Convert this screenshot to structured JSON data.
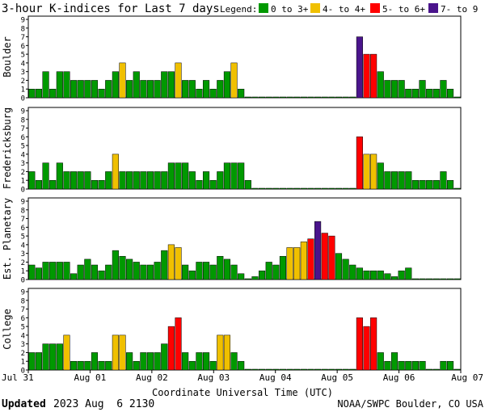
{
  "title": "3-hour K-indices for Last 7 days",
  "legend": {
    "label": "Legend:",
    "items": [
      {
        "text": "0 to 3+",
        "color": "#009900"
      },
      {
        "text": "4- to 4+",
        "color": "#f0c000"
      },
      {
        "text": "5- to 6+",
        "color": "#ff0000"
      },
      {
        "text": "7- to 9",
        "color": "#4a148c"
      }
    ]
  },
  "footer": {
    "updated_label": "Updated",
    "updated_value": "2023 Aug  6 2130",
    "source": "NOAA/SWPC Boulder, CO USA"
  },
  "chart_data": [
    {
      "type": "bar",
      "ylabel": "Boulder",
      "ylim": [
        0,
        9
      ],
      "yticks": [
        "0",
        "1",
        "2",
        "3",
        "4",
        "5",
        "6",
        "7",
        "8",
        "9"
      ],
      "values": [
        1,
        1,
        3,
        1,
        3,
        3,
        2,
        2,
        2,
        2,
        1,
        2,
        3,
        4,
        2,
        3,
        2,
        2,
        2,
        3,
        3,
        4,
        2,
        2,
        1,
        2,
        1,
        2,
        3,
        4,
        1,
        0,
        0,
        0,
        0,
        0,
        0,
        0,
        0,
        0,
        0,
        0,
        0,
        0,
        0,
        0,
        0,
        7,
        5,
        5,
        3,
        2,
        2,
        2,
        1,
        1,
        2,
        1,
        1,
        2,
        1,
        0
      ]
    },
    {
      "type": "bar",
      "ylabel": "Fredericksburg",
      "ylim": [
        0,
        9
      ],
      "yticks": [
        "0",
        "1",
        "2",
        "3",
        "4",
        "5",
        "6",
        "7",
        "8",
        "9"
      ],
      "values": [
        2,
        1,
        3,
        1,
        3,
        2,
        2,
        2,
        2,
        1,
        1,
        2,
        4,
        2,
        2,
        2,
        2,
        2,
        2,
        2,
        3,
        3,
        3,
        2,
        1,
        2,
        1,
        2,
        3,
        3,
        3,
        1,
        0,
        0,
        0,
        0,
        0,
        0,
        0,
        0,
        0,
        0,
        0,
        0,
        0,
        0,
        0,
        6,
        4,
        4,
        3,
        2,
        2,
        2,
        2,
        1,
        1,
        1,
        1,
        2,
        1,
        0
      ]
    },
    {
      "type": "bar",
      "ylabel": "Est. Planetary",
      "ylim": [
        0,
        9
      ],
      "yticks": [
        "0",
        "1",
        "2",
        "3",
        "4",
        "5",
        "6",
        "7",
        "8",
        "9"
      ],
      "values": [
        1.67,
        1.33,
        2,
        2,
        2,
        2,
        0.67,
        1.67,
        2.33,
        1.67,
        1,
        1.67,
        3.33,
        2.67,
        2.33,
        2,
        1.67,
        1.67,
        2,
        3.33,
        4,
        3.67,
        1.67,
        1,
        2,
        2,
        1.67,
        2.67,
        2.33,
        1.67,
        0.67,
        0,
        0.33,
        1,
        2,
        1.67,
        2.67,
        3.67,
        3.67,
        4.33,
        4.67,
        6.67,
        5.33,
        5,
        3,
        2.33,
        1.67,
        1.33,
        1,
        1,
        1,
        0.67,
        0.33,
        1,
        1.33,
        0,
        0,
        0,
        0,
        0,
        0,
        0
      ]
    },
    {
      "type": "bar",
      "ylabel": "College",
      "ylim": [
        0,
        9
      ],
      "yticks": [
        "0",
        "1",
        "2",
        "3",
        "4",
        "5",
        "6",
        "7",
        "8",
        "9"
      ],
      "values": [
        2,
        2,
        3,
        3,
        3,
        4,
        1,
        1,
        1,
        2,
        1,
        1,
        4,
        4,
        2,
        1,
        2,
        2,
        2,
        3,
        5,
        6,
        2,
        1,
        2,
        2,
        1,
        4,
        4,
        2,
        1,
        0,
        0,
        0,
        0,
        0,
        0,
        0,
        0,
        0,
        0,
        0,
        0,
        0,
        0,
        0,
        0,
        6,
        5,
        6,
        2,
        1,
        2,
        1,
        1,
        1,
        1,
        0,
        0,
        1,
        1,
        0
      ]
    }
  ],
  "x_axis": {
    "label": "Coordinate Universal Time (UTC)",
    "ticks": [
      "Jul 31",
      "Aug 01",
      "Aug 02",
      "Aug 03",
      "Aug 04",
      "Aug 05",
      "Aug 06",
      "Aug 07"
    ]
  }
}
